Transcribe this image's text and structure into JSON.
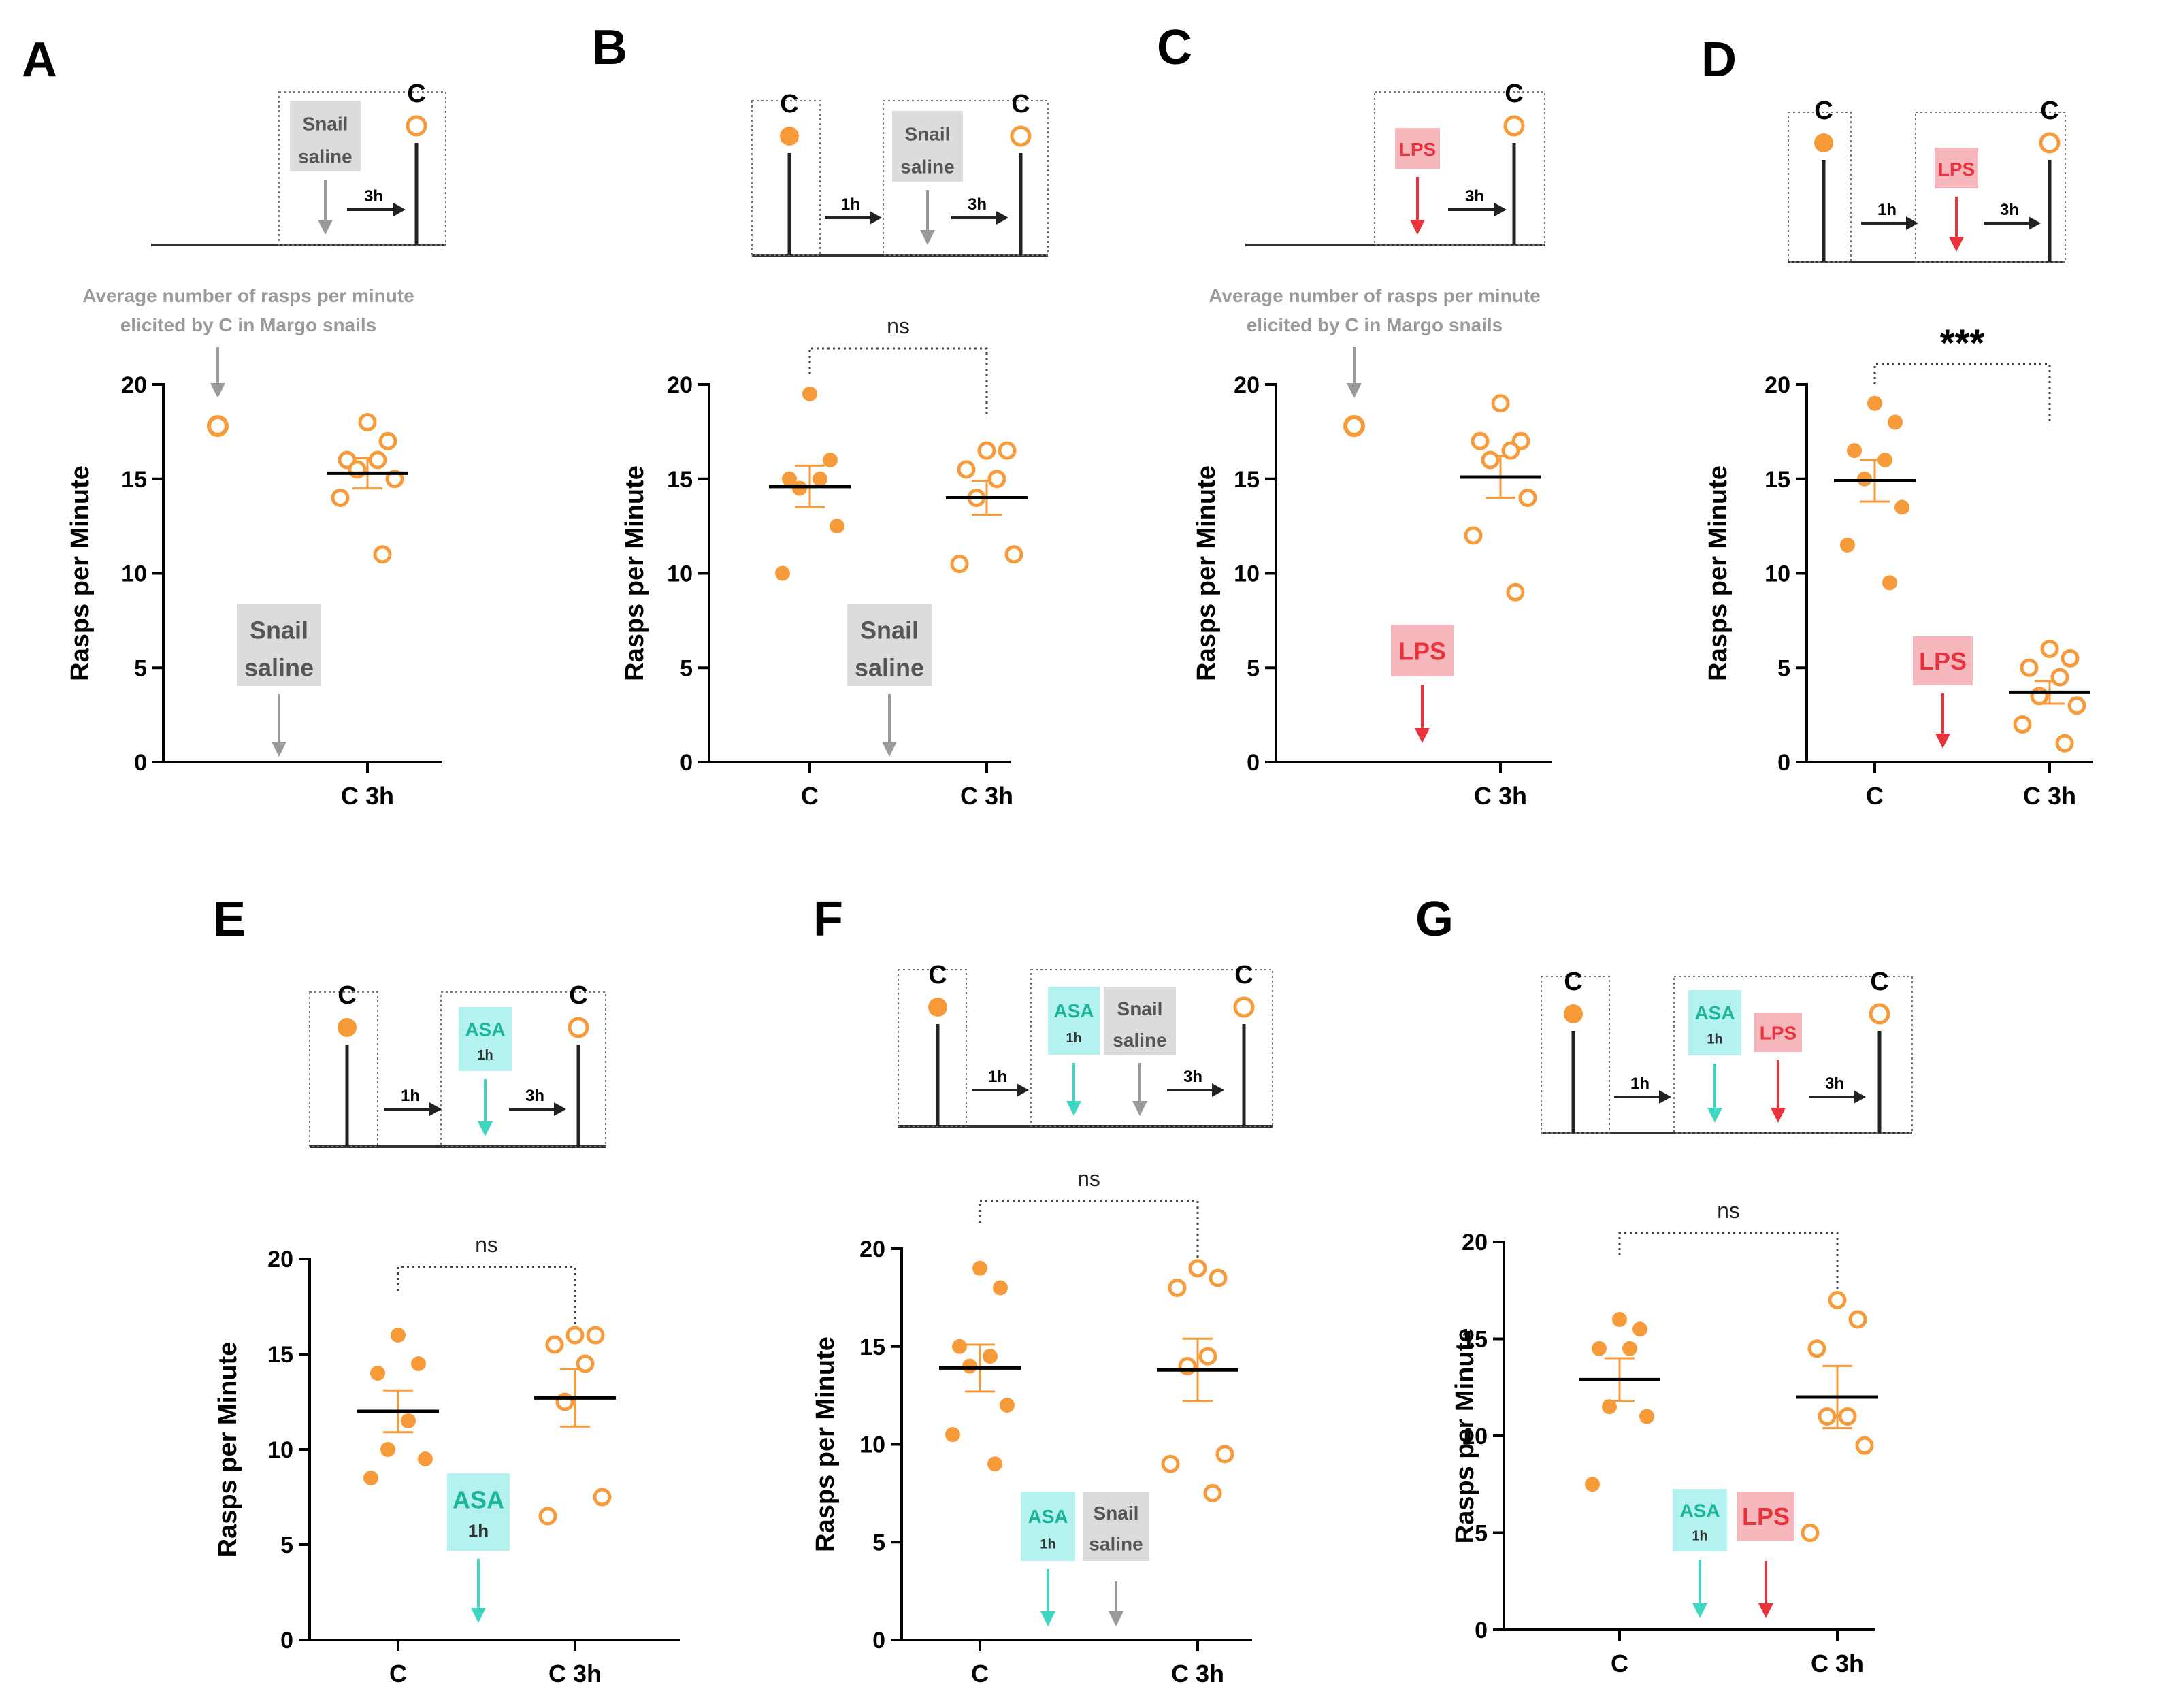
{
  "colors": {
    "orange": "#f79b3a",
    "saline_fill": "#dcdcdc",
    "saline_text": "#555555",
    "saline_arrow": "#9a9a9a",
    "lps_fill": "#f7b8bd",
    "lps_text": "#e8333c",
    "lps_arrow": "#e8333c",
    "asa_fill": "#b3f2ef",
    "asa_text": "#1bb59c",
    "asa_arrow": "#3fd6c2",
    "axis": "#000000",
    "note": "#9a9a9a"
  },
  "chart_data": [
    {
      "panel": "A",
      "type": "scatter",
      "ylabel": "Rasps per Minute",
      "ylim": [
        0,
        20
      ],
      "yticks": [
        "0",
        "5",
        "10",
        "15",
        "20"
      ],
      "categories": [
        "C 3h"
      ],
      "reference": {
        "value": 17.8,
        "note_lines": [
          "Average number of rasps per minute",
          "elicited by C in Margo snails"
        ]
      },
      "series": [
        {
          "name": "C 3h",
          "filled": false,
          "values": [
            18,
            17,
            16,
            16,
            15.5,
            15,
            14,
            11
          ],
          "mean": 15.3,
          "sem": 0.8
        }
      ],
      "treatment": {
        "kind": "saline",
        "lines": [
          "Snail",
          "saline"
        ]
      },
      "schematic": {
        "conditions": [
          "C"
        ],
        "steps": [
          "3h"
        ],
        "treatments": [
          {
            "kind": "saline",
            "lines": [
              "Snail",
              "saline"
            ]
          }
        ]
      }
    },
    {
      "panel": "B",
      "type": "scatter",
      "ylabel": "Rasps per Minute",
      "ylim": [
        0,
        20
      ],
      "yticks": [
        "0",
        "5",
        "10",
        "15",
        "20"
      ],
      "categories": [
        "C",
        "C 3h"
      ],
      "significance": "ns",
      "series": [
        {
          "name": "C",
          "filled": true,
          "values": [
            19.5,
            16,
            15,
            15,
            14.5,
            12.5,
            10
          ],
          "mean": 14.6,
          "sem": 1.1
        },
        {
          "name": "C 3h",
          "filled": false,
          "values": [
            16.5,
            16.5,
            15.5,
            15,
            14,
            11,
            10.5
          ],
          "mean": 14.0,
          "sem": 0.9
        }
      ],
      "treatment": {
        "kind": "saline",
        "lines": [
          "Snail",
          "saline"
        ]
      },
      "schematic": {
        "conditions": [
          "C",
          "C"
        ],
        "steps": [
          "1h",
          "3h"
        ],
        "treatments": [
          {
            "kind": "saline",
            "lines": [
              "Snail",
              "saline"
            ]
          }
        ]
      }
    },
    {
      "panel": "C",
      "type": "scatter",
      "ylabel": "Rasps per Minute",
      "ylim": [
        0,
        20
      ],
      "yticks": [
        "0",
        "5",
        "10",
        "15",
        "20"
      ],
      "categories": [
        "C 3h"
      ],
      "reference": {
        "value": 17.8,
        "note_lines": [
          "Average number of rasps per minute",
          "elicited by C in Margo snails"
        ]
      },
      "series": [
        {
          "name": "C 3h",
          "filled": false,
          "values": [
            19,
            17,
            17,
            16.5,
            16,
            14,
            12,
            9
          ],
          "mean": 15.1,
          "sem": 1.1
        }
      ],
      "treatment": {
        "kind": "lps",
        "lines": [
          "LPS"
        ]
      },
      "schematic": {
        "conditions": [
          "C"
        ],
        "steps": [
          "3h"
        ],
        "treatments": [
          {
            "kind": "lps",
            "lines": [
              "LPS"
            ]
          }
        ]
      }
    },
    {
      "panel": "D",
      "type": "scatter",
      "ylabel": "Rasps per Minute",
      "ylim": [
        0,
        20
      ],
      "yticks": [
        "0",
        "5",
        "10",
        "15",
        "20"
      ],
      "categories": [
        "C",
        "C 3h"
      ],
      "significance": "***",
      "series": [
        {
          "name": "C",
          "filled": true,
          "values": [
            19,
            18,
            16.5,
            16,
            15,
            13.5,
            11.5,
            9.5
          ],
          "mean": 14.9,
          "sem": 1.1
        },
        {
          "name": "C 3h",
          "filled": false,
          "values": [
            6,
            5.5,
            5,
            4.5,
            3.5,
            3,
            2,
            1
          ],
          "mean": 3.7,
          "sem": 0.6
        }
      ],
      "treatment": {
        "kind": "lps",
        "lines": [
          "LPS"
        ]
      },
      "schematic": {
        "conditions": [
          "C",
          "C"
        ],
        "steps": [
          "1h",
          "3h"
        ],
        "treatments": [
          {
            "kind": "lps",
            "lines": [
              "LPS"
            ]
          }
        ]
      }
    },
    {
      "panel": "E",
      "type": "scatter",
      "ylabel": "Rasps per Minute",
      "ylim": [
        0,
        20
      ],
      "yticks": [
        "0",
        "5",
        "10",
        "15",
        "20"
      ],
      "categories": [
        "C",
        "C 3h"
      ],
      "significance": "ns",
      "series": [
        {
          "name": "C",
          "filled": true,
          "values": [
            16,
            14.5,
            14,
            11.5,
            10,
            9.5,
            8.5
          ],
          "mean": 12.0,
          "sem": 1.1
        },
        {
          "name": "C 3h",
          "filled": false,
          "values": [
            16,
            16,
            15.5,
            14.5,
            12.5,
            7.5,
            6.5
          ],
          "mean": 12.7,
          "sem": 1.5
        }
      ],
      "treatment": {
        "kind": "asa",
        "lines": [
          "ASA",
          "1h"
        ]
      },
      "schematic": {
        "conditions": [
          "C",
          "C"
        ],
        "steps": [
          "1h",
          "3h"
        ],
        "treatments": [
          {
            "kind": "asa",
            "lines": [
              "ASA",
              "1h"
            ]
          }
        ]
      }
    },
    {
      "panel": "F",
      "type": "scatter",
      "ylabel": "Rasps per Minute",
      "ylim": [
        0,
        20
      ],
      "yticks": [
        "0",
        "5",
        "10",
        "15",
        "20"
      ],
      "categories": [
        "C",
        "C 3h"
      ],
      "significance": "ns",
      "series": [
        {
          "name": "C",
          "filled": true,
          "values": [
            19,
            18,
            15,
            14.5,
            14,
            12,
            10.5,
            9
          ],
          "mean": 13.9,
          "sem": 1.2
        },
        {
          "name": "C 3h",
          "filled": false,
          "values": [
            19,
            18.5,
            18,
            14.5,
            14,
            9.5,
            9,
            7.5
          ],
          "mean": 13.8,
          "sem": 1.6
        }
      ],
      "treatment": {
        "kind": "asa_saline",
        "lines": [
          "ASA",
          "1h"
        ],
        "lines2": [
          "Snail",
          "saline"
        ]
      },
      "schematic": {
        "conditions": [
          "C",
          "C"
        ],
        "steps": [
          "1h",
          "3h"
        ],
        "treatments": [
          {
            "kind": "asa",
            "lines": [
              "ASA",
              "1h"
            ]
          },
          {
            "kind": "saline",
            "lines": [
              "Snail",
              "saline"
            ]
          }
        ]
      }
    },
    {
      "panel": "G",
      "type": "scatter",
      "ylabel": "Rasps per Minute",
      "ylim": [
        0,
        20
      ],
      "yticks": [
        "0",
        "5",
        "10",
        "15",
        "20"
      ],
      "categories": [
        "C",
        "C 3h"
      ],
      "significance": "ns",
      "series": [
        {
          "name": "C",
          "filled": true,
          "values": [
            16,
            15.5,
            14.5,
            14.5,
            11.5,
            11,
            7.5
          ],
          "mean": 12.9,
          "sem": 1.1
        },
        {
          "name": "C 3h",
          "filled": false,
          "values": [
            17,
            16,
            14.5,
            11,
            11,
            9.5,
            5
          ],
          "mean": 12.0,
          "sem": 1.6
        }
      ],
      "treatment": {
        "kind": "asa_lps",
        "lines": [
          "ASA",
          "1h"
        ],
        "lines2": [
          "LPS"
        ]
      },
      "schematic": {
        "conditions": [
          "C",
          "C"
        ],
        "steps": [
          "1h",
          "3h"
        ],
        "treatments": [
          {
            "kind": "asa",
            "lines": [
              "ASA",
              "1h"
            ]
          },
          {
            "kind": "lps",
            "lines": [
              "LPS"
            ]
          }
        ]
      }
    }
  ]
}
